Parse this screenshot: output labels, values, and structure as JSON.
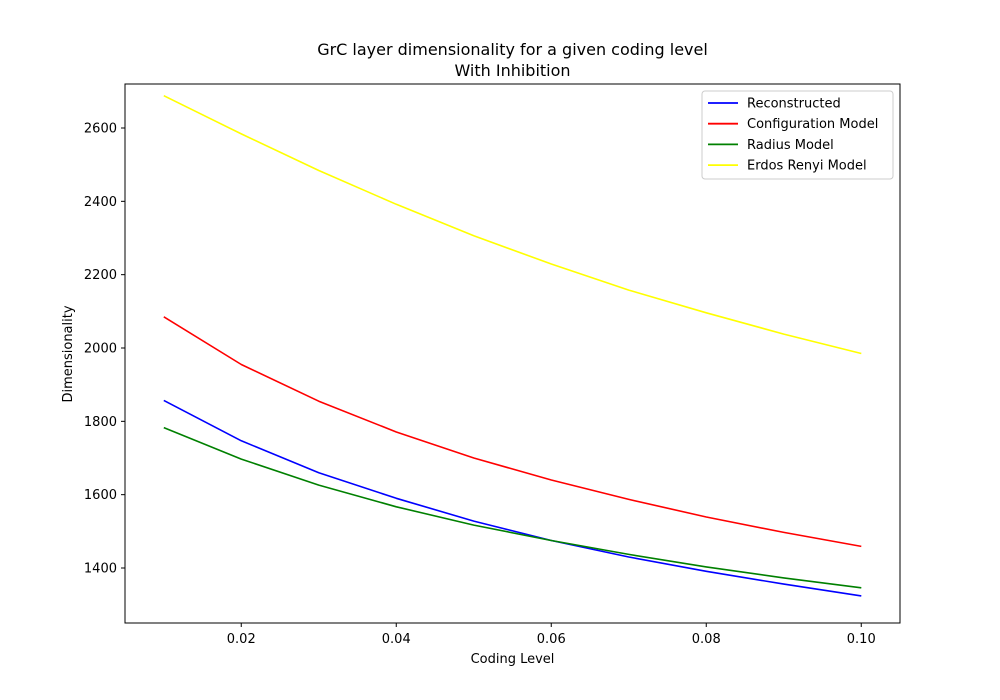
{
  "chart_data": {
    "type": "line",
    "title": "GrC layer dimensionality for a given coding level",
    "subtitle": "With Inhibition",
    "xlabel": "Coding Level",
    "ylabel": "Dimensionality",
    "xlim": [
      0.005,
      0.105
    ],
    "ylim": [
      1250,
      2720
    ],
    "xticks": [
      0.02,
      0.04,
      0.06,
      0.08,
      0.1
    ],
    "xtick_labels": [
      "0.02",
      "0.04",
      "0.06",
      "0.08",
      "0.10"
    ],
    "yticks": [
      1400,
      1600,
      1800,
      2000,
      2200,
      2400,
      2600
    ],
    "ytick_labels": [
      "1400",
      "1600",
      "1800",
      "2000",
      "2200",
      "2400",
      "2600"
    ],
    "grid": false,
    "legend_position": "top-right",
    "x": [
      0.01,
      0.02,
      0.03,
      0.04,
      0.05,
      0.06,
      0.07,
      0.08,
      0.09,
      0.1
    ],
    "series": [
      {
        "name": "Reconstructed",
        "color": "#0000ff",
        "values": [
          1857,
          1747,
          1660,
          1590,
          1528,
          1475,
          1430,
          1391,
          1356,
          1324
        ]
      },
      {
        "name": "Configuration Model",
        "color": "#ff0000",
        "values": [
          2085,
          1955,
          1855,
          1771,
          1700,
          1640,
          1587,
          1539,
          1497,
          1459
        ]
      },
      {
        "name": "Radius Model",
        "color": "#008000",
        "values": [
          1783,
          1697,
          1626,
          1567,
          1517,
          1475,
          1437,
          1403,
          1373,
          1346
        ]
      },
      {
        "name": "Erdos Renyi Model",
        "color": "#ffff00",
        "values": [
          2688,
          2584,
          2484,
          2392,
          2306,
          2229,
          2158,
          2096,
          2038,
          1985
        ]
      }
    ]
  }
}
